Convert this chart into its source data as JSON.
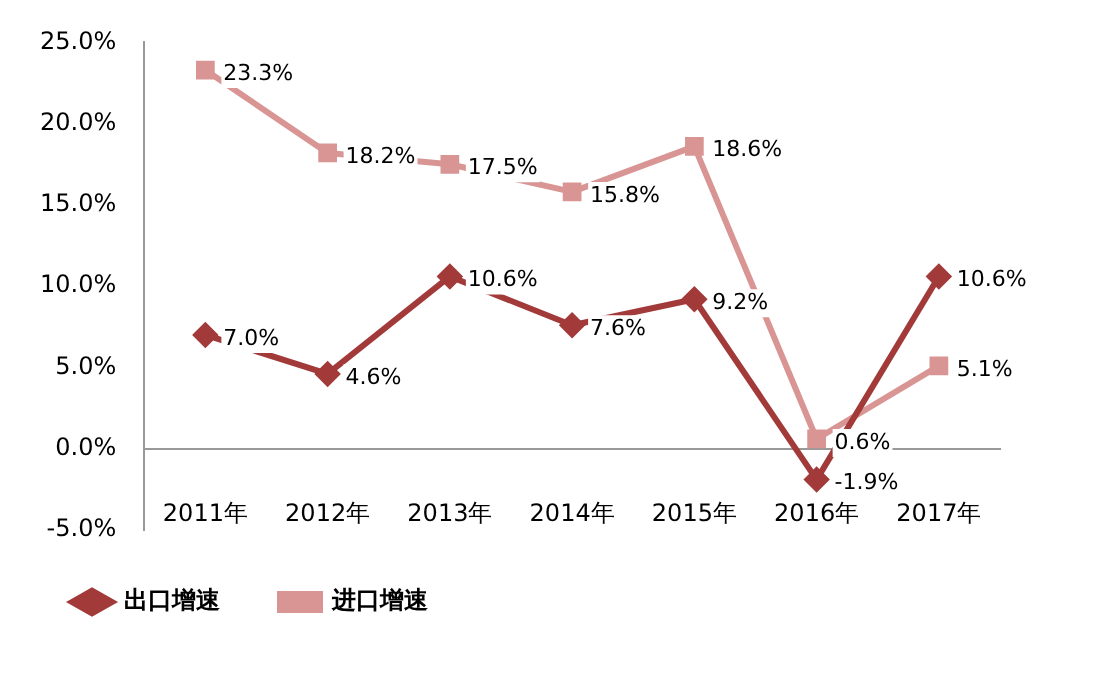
{
  "chart_data": {
    "type": "line",
    "categories": [
      "2011年",
      "2012年",
      "2013年",
      "2014年",
      "2015年",
      "2016年",
      "2017年"
    ],
    "series": [
      {
        "name": "出口增速",
        "color": "#a33a3a",
        "marker": "diamond",
        "values": [
          7.0,
          4.6,
          10.6,
          7.6,
          9.2,
          -1.9,
          10.6
        ],
        "value_labels": [
          "7.0%",
          "4.6%",
          "10.6%",
          "7.6%",
          "9.2%",
          "-1.9%",
          "10.6%"
        ]
      },
      {
        "name": "进口增速",
        "color": "#d99594",
        "marker": "square",
        "values": [
          23.3,
          18.2,
          17.5,
          15.8,
          18.6,
          0.6,
          5.1
        ],
        "value_labels": [
          "23.3%",
          "18.2%",
          "17.5%",
          "15.8%",
          "18.6%",
          "0.6%",
          "5.1%"
        ]
      }
    ],
    "ylim": [
      -5,
      25
    ],
    "yticks": [
      {
        "value": -5,
        "label": "-5.0%"
      },
      {
        "value": 0,
        "label": "0.0%"
      },
      {
        "value": 5,
        "label": "5.0%"
      },
      {
        "value": 10,
        "label": "10.0%"
      },
      {
        "value": 15,
        "label": "15.0%"
      },
      {
        "value": 20,
        "label": "20.0%"
      },
      {
        "value": 25,
        "label": "25.0%"
      }
    ],
    "grid": false,
    "legend": "bottom left",
    "line_style": "solid"
  }
}
